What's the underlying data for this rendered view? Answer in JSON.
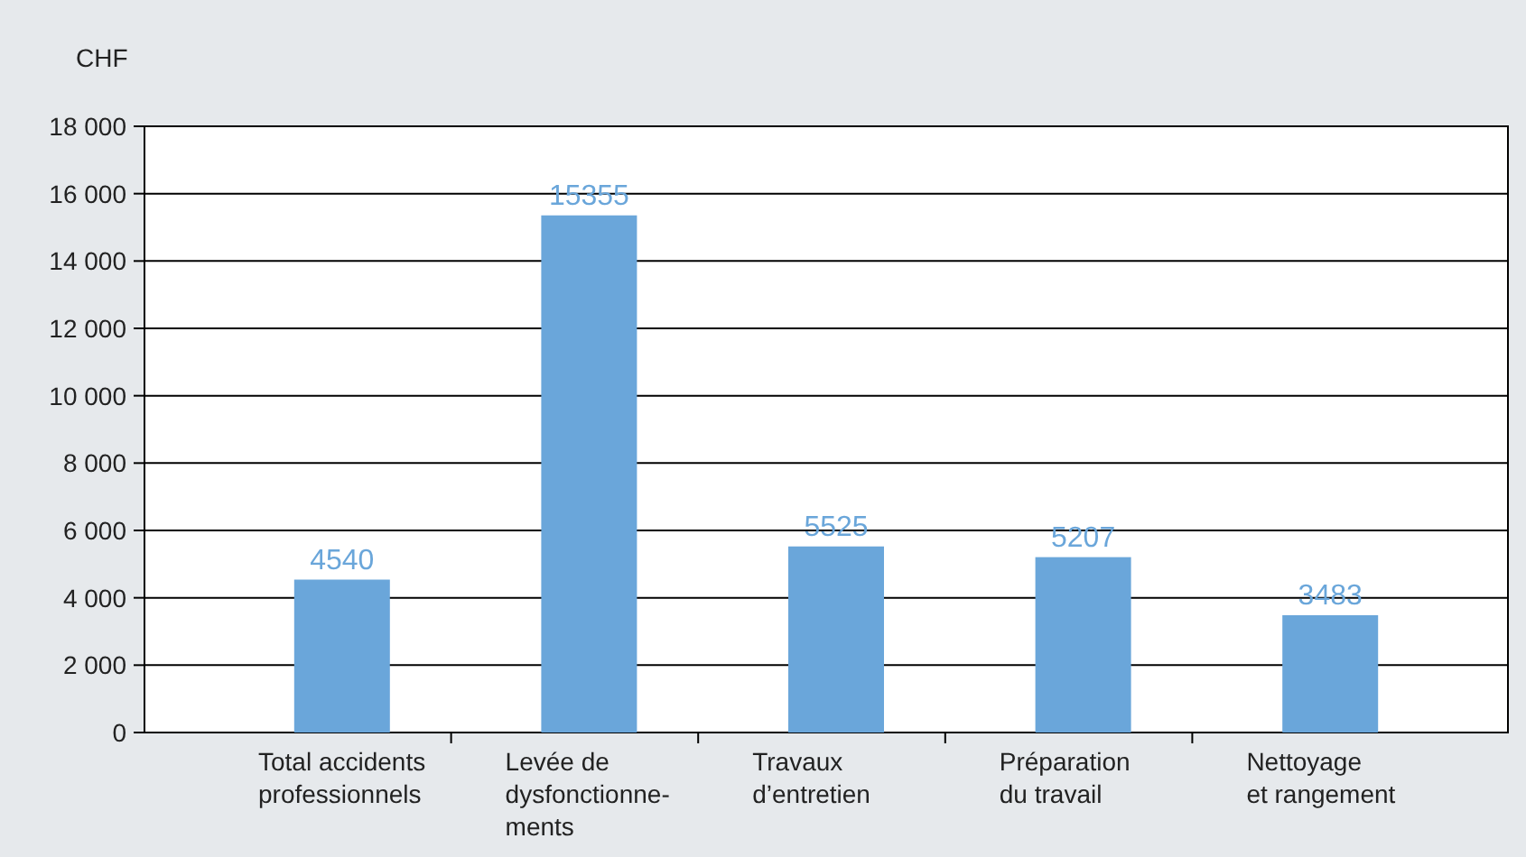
{
  "chart_data": {
    "type": "bar",
    "ylabel": "CHF",
    "categories": [
      "Total accidents\nprofessionnels",
      "Levée de\ndysfonctionne-\nments",
      "Travaux\nd’entretien",
      "Préparation\ndu travail",
      "Nettoyage\net rangement"
    ],
    "values": [
      4540,
      15355,
      5525,
      5207,
      3483
    ],
    "color": "#6aa6da",
    "data_labels": true,
    "grid": "y",
    "ylim": [
      0,
      18000
    ],
    "yticks": [
      0,
      {
        "value": 2000,
        "label": "2 000"
      },
      {
        "value": 4000,
        "label": "4 000"
      },
      {
        "value": 6000,
        "label": "6 000"
      },
      {
        "value": 8000,
        "label": "8 000"
      },
      {
        "value": 10000,
        "label": "10 000"
      },
      {
        "value": 12000,
        "label": "12 000"
      },
      {
        "value": 14000,
        "label": "14 000"
      },
      {
        "value": 16000,
        "label": "16 000"
      },
      {
        "value": 18000,
        "label": "18 000"
      }
    ]
  }
}
